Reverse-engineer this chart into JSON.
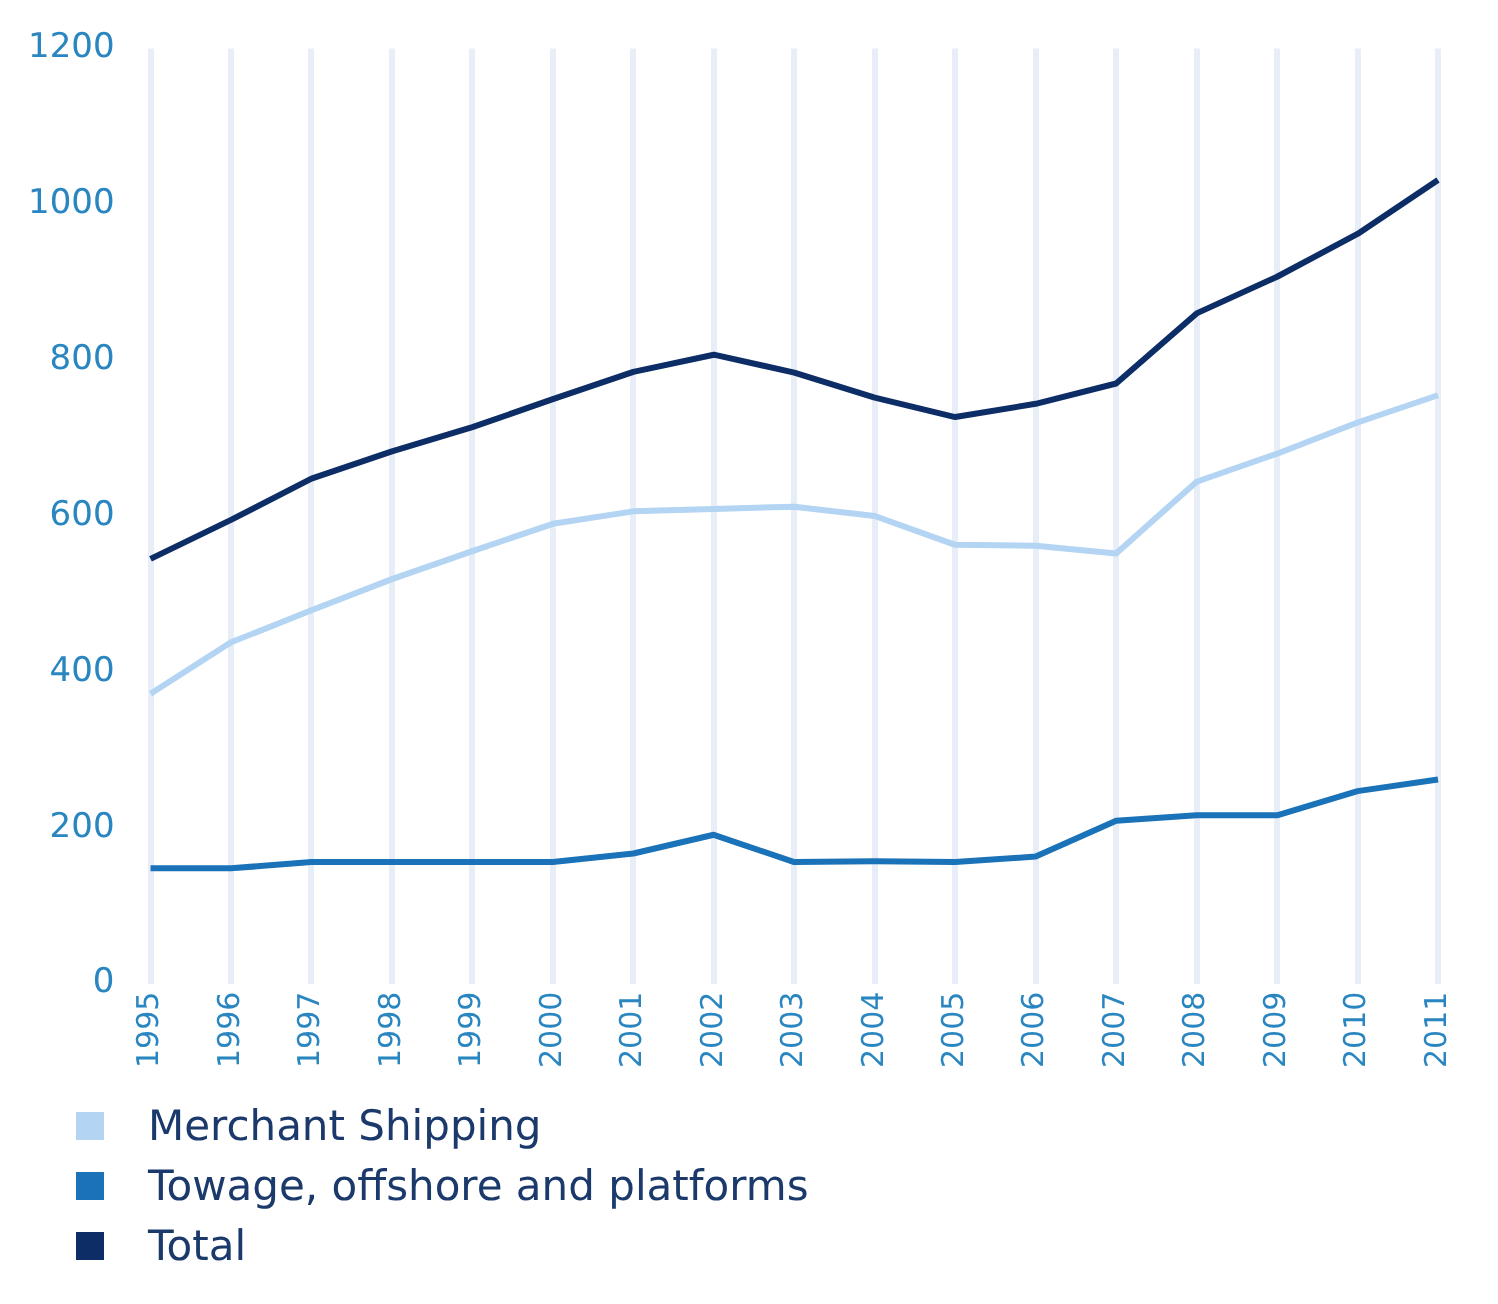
{
  "chart_data": {
    "type": "line",
    "categories": [
      "1995",
      "1996",
      "1997",
      "1998",
      "1999",
      "2000",
      "2001",
      "2002",
      "2003",
      "2004",
      "2005",
      "2006",
      "2007",
      "2008",
      "2009",
      "2010",
      "2011"
    ],
    "series": [
      {
        "name": "Merchant Shipping",
        "color": "#b3d4f2",
        "values": [
          372,
          438,
          479,
          519,
          555,
          590,
          606,
          609,
          612,
          600,
          563,
          562,
          552,
          644,
          680,
          720,
          755
        ]
      },
      {
        "name": "Towage, offshore and platforms",
        "color": "#1a72b8",
        "values": [
          148,
          148,
          156,
          156,
          156,
          156,
          167,
          191,
          156,
          157,
          156,
          163,
          209,
          216,
          216,
          247,
          262
        ]
      },
      {
        "name": "Total",
        "color": "#0d2d66",
        "values": [
          545,
          595,
          648,
          683,
          714,
          750,
          785,
          807,
          784,
          752,
          727,
          744,
          770,
          860,
          907,
          962,
          1031
        ]
      }
    ],
    "ylim": [
      0,
      1200
    ],
    "yticks": [
      0,
      200,
      400,
      600,
      800,
      1000,
      1200
    ],
    "grid": "x",
    "legend": "bottom",
    "marker": "none",
    "line_style": "solid"
  }
}
